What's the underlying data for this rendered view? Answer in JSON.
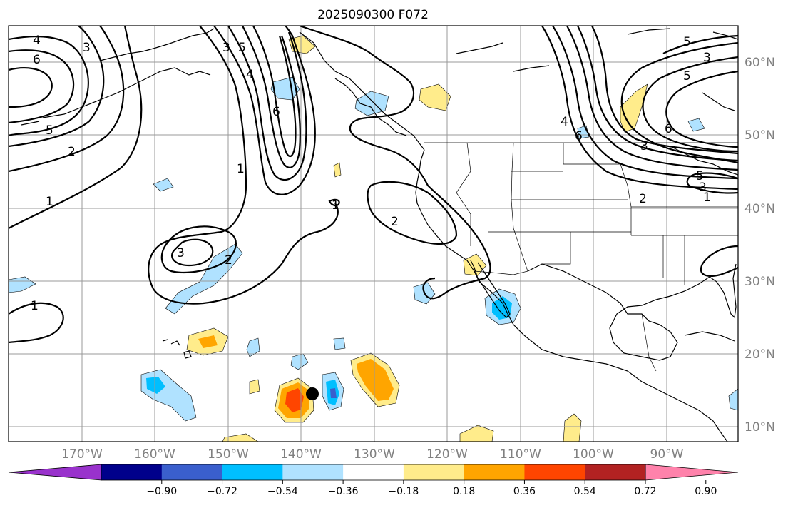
{
  "map": {
    "title": "2025090300 F072",
    "lat_ticks": [
      "60°N",
      "50°N",
      "40°N",
      "30°N",
      "20°N",
      "10°N"
    ],
    "lon_ticks": [
      "170°W",
      "160°W",
      "150°W",
      "140°W",
      "130°W",
      "120°W",
      "110°W",
      "100°W",
      "90°W"
    ],
    "contour_labels": [
      "4",
      "6",
      "3",
      "5",
      "2",
      "1",
      "3",
      "5",
      "4",
      "6",
      "1",
      "1",
      "2",
      "3",
      "2",
      "1",
      "4",
      "6",
      "3",
      "5",
      "6",
      "3",
      "5",
      "2",
      "1",
      "3",
      "5"
    ],
    "marker": "storm-center"
  },
  "colorbar": {
    "ticks": [
      "−0.90",
      "−0.72",
      "−0.54",
      "−0.36",
      "−0.18",
      "0.18",
      "0.36",
      "0.54",
      "0.72",
      "0.90"
    ],
    "colors": [
      "#9932cc",
      "#00008b",
      "#3a5fcd",
      "#00bfff",
      "#b0e2ff",
      "#ffffff",
      "#ffec8b",
      "#ffa500",
      "#ff4500",
      "#b22222",
      "#ff82ab"
    ]
  }
}
